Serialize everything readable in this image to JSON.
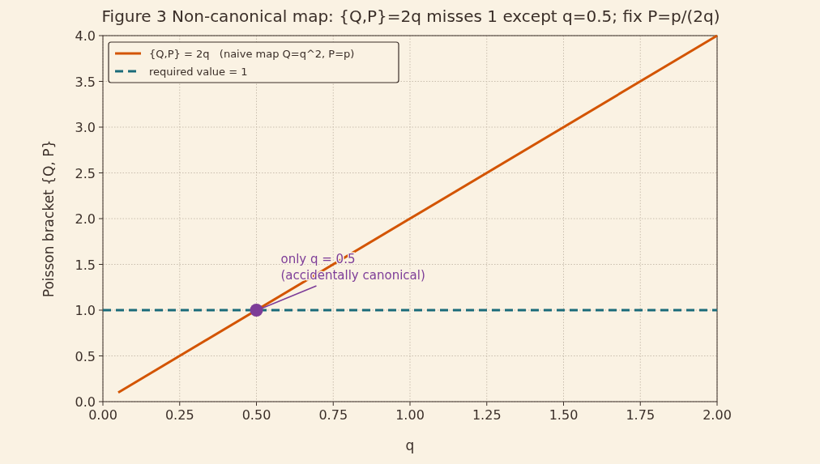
{
  "chart_data": {
    "type": "line",
    "title": "Figure 3  Non-canonical map: {Q,P}=2q misses 1 except q=0.5; fix P=p/(2q)",
    "xlabel": "q",
    "ylabel": "Poisson bracket  {Q, P}",
    "series": [
      {
        "name": "{Q,P} = 2q   (naive map Q=q^2, P=p)",
        "color": "#d35400",
        "x": [
          0.05,
          2.0
        ],
        "values": [
          0.1,
          4.0
        ],
        "line_style": "solid"
      },
      {
        "name": "required value = 1",
        "color": "#1a6b7a",
        "x": [
          0.0,
          2.0
        ],
        "values": [
          1,
          1
        ],
        "line_style": "dashed"
      },
      {
        "type": "scatter",
        "color": "#7d3c98",
        "x": [
          0.5
        ],
        "values": [
          1
        ],
        "marker": "circle"
      }
    ],
    "annotations": [
      {
        "text": "only q = 0.5\n(accidentally canonical)",
        "x": 0.5,
        "y": 1
      }
    ],
    "xlim": [
      0,
      2
    ],
    "xticks": [
      {
        "value": 0,
        "label": "0.00"
      },
      {
        "value": 0.25,
        "label": "0.25"
      },
      {
        "value": 0.5,
        "label": "0.50"
      },
      {
        "value": 0.75,
        "label": "0.75"
      },
      {
        "value": 1,
        "label": "1.00"
      },
      {
        "value": 1.25,
        "label": "1.25"
      },
      {
        "value": 1.5,
        "label": "1.50"
      },
      {
        "value": 1.75,
        "label": "1.75"
      },
      {
        "value": 2,
        "label": "2.00"
      }
    ],
    "ylim": [
      0,
      4
    ],
    "yticks": [
      {
        "value": 0,
        "label": "0.0"
      },
      {
        "value": 0.5,
        "label": "0.5"
      },
      {
        "value": 1,
        "label": "1.0"
      },
      {
        "value": 1.5,
        "label": "1.5"
      },
      {
        "value": 2,
        "label": "2.0"
      },
      {
        "value": 2.5,
        "label": "2.5"
      },
      {
        "value": 3,
        "label": "3.0"
      },
      {
        "value": 3.5,
        "label": "3.5"
      },
      {
        "value": 4,
        "label": "4.0"
      }
    ],
    "grid": true,
    "legend": "top left"
  }
}
